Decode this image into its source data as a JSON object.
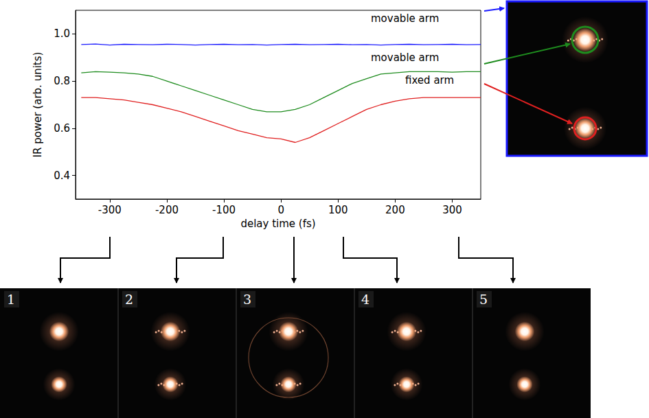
{
  "chart_data": {
    "type": "line",
    "x_label": "delay time (fs)",
    "y_label": "IR power (arb. units)",
    "x": [
      -350,
      -325,
      -300,
      -275,
      -250,
      -225,
      -200,
      -175,
      -150,
      -125,
      -100,
      -75,
      -50,
      -25,
      0,
      25,
      50,
      75,
      100,
      125,
      150,
      175,
      200,
      225,
      250,
      275,
      300,
      325,
      350
    ],
    "series": [
      {
        "name": "movable arm",
        "color": "#1a1aff",
        "values": [
          0.955,
          0.957,
          0.953,
          0.956,
          0.955,
          0.954,
          0.956,
          0.955,
          0.953,
          0.955,
          0.956,
          0.954,
          0.955,
          0.953,
          0.955,
          0.956,
          0.954,
          0.955,
          0.956,
          0.954,
          0.955,
          0.953,
          0.955,
          0.956,
          0.954,
          0.955,
          0.956,
          0.954,
          0.955
        ]
      },
      {
        "name": "movable arm",
        "color": "#1e8c1e",
        "values": [
          0.835,
          0.84,
          0.838,
          0.835,
          0.83,
          0.82,
          0.8,
          0.78,
          0.76,
          0.74,
          0.72,
          0.7,
          0.68,
          0.67,
          0.67,
          0.68,
          0.7,
          0.73,
          0.76,
          0.79,
          0.81,
          0.83,
          0.835,
          0.84,
          0.84,
          0.84,
          0.838,
          0.84,
          0.84
        ]
      },
      {
        "name": "fixed arm",
        "color": "#e02020",
        "values": [
          0.73,
          0.73,
          0.725,
          0.72,
          0.71,
          0.7,
          0.685,
          0.67,
          0.65,
          0.63,
          0.61,
          0.59,
          0.575,
          0.56,
          0.555,
          0.54,
          0.56,
          0.59,
          0.62,
          0.65,
          0.68,
          0.7,
          0.715,
          0.725,
          0.73,
          0.73,
          0.73,
          0.73,
          0.73
        ]
      }
    ],
    "xlim": [
      -360,
      350
    ],
    "xticks": [
      -300,
      -200,
      -100,
      0,
      100,
      200,
      300
    ],
    "ylim": [
      0.3,
      1.1
    ],
    "yticks": [
      0.4,
      0.6,
      0.8,
      {
        "value": 1,
        "label": "1.0"
      }
    ],
    "grid": false
  },
  "image_panels": [
    "1",
    "2",
    "3",
    "4",
    "5"
  ]
}
